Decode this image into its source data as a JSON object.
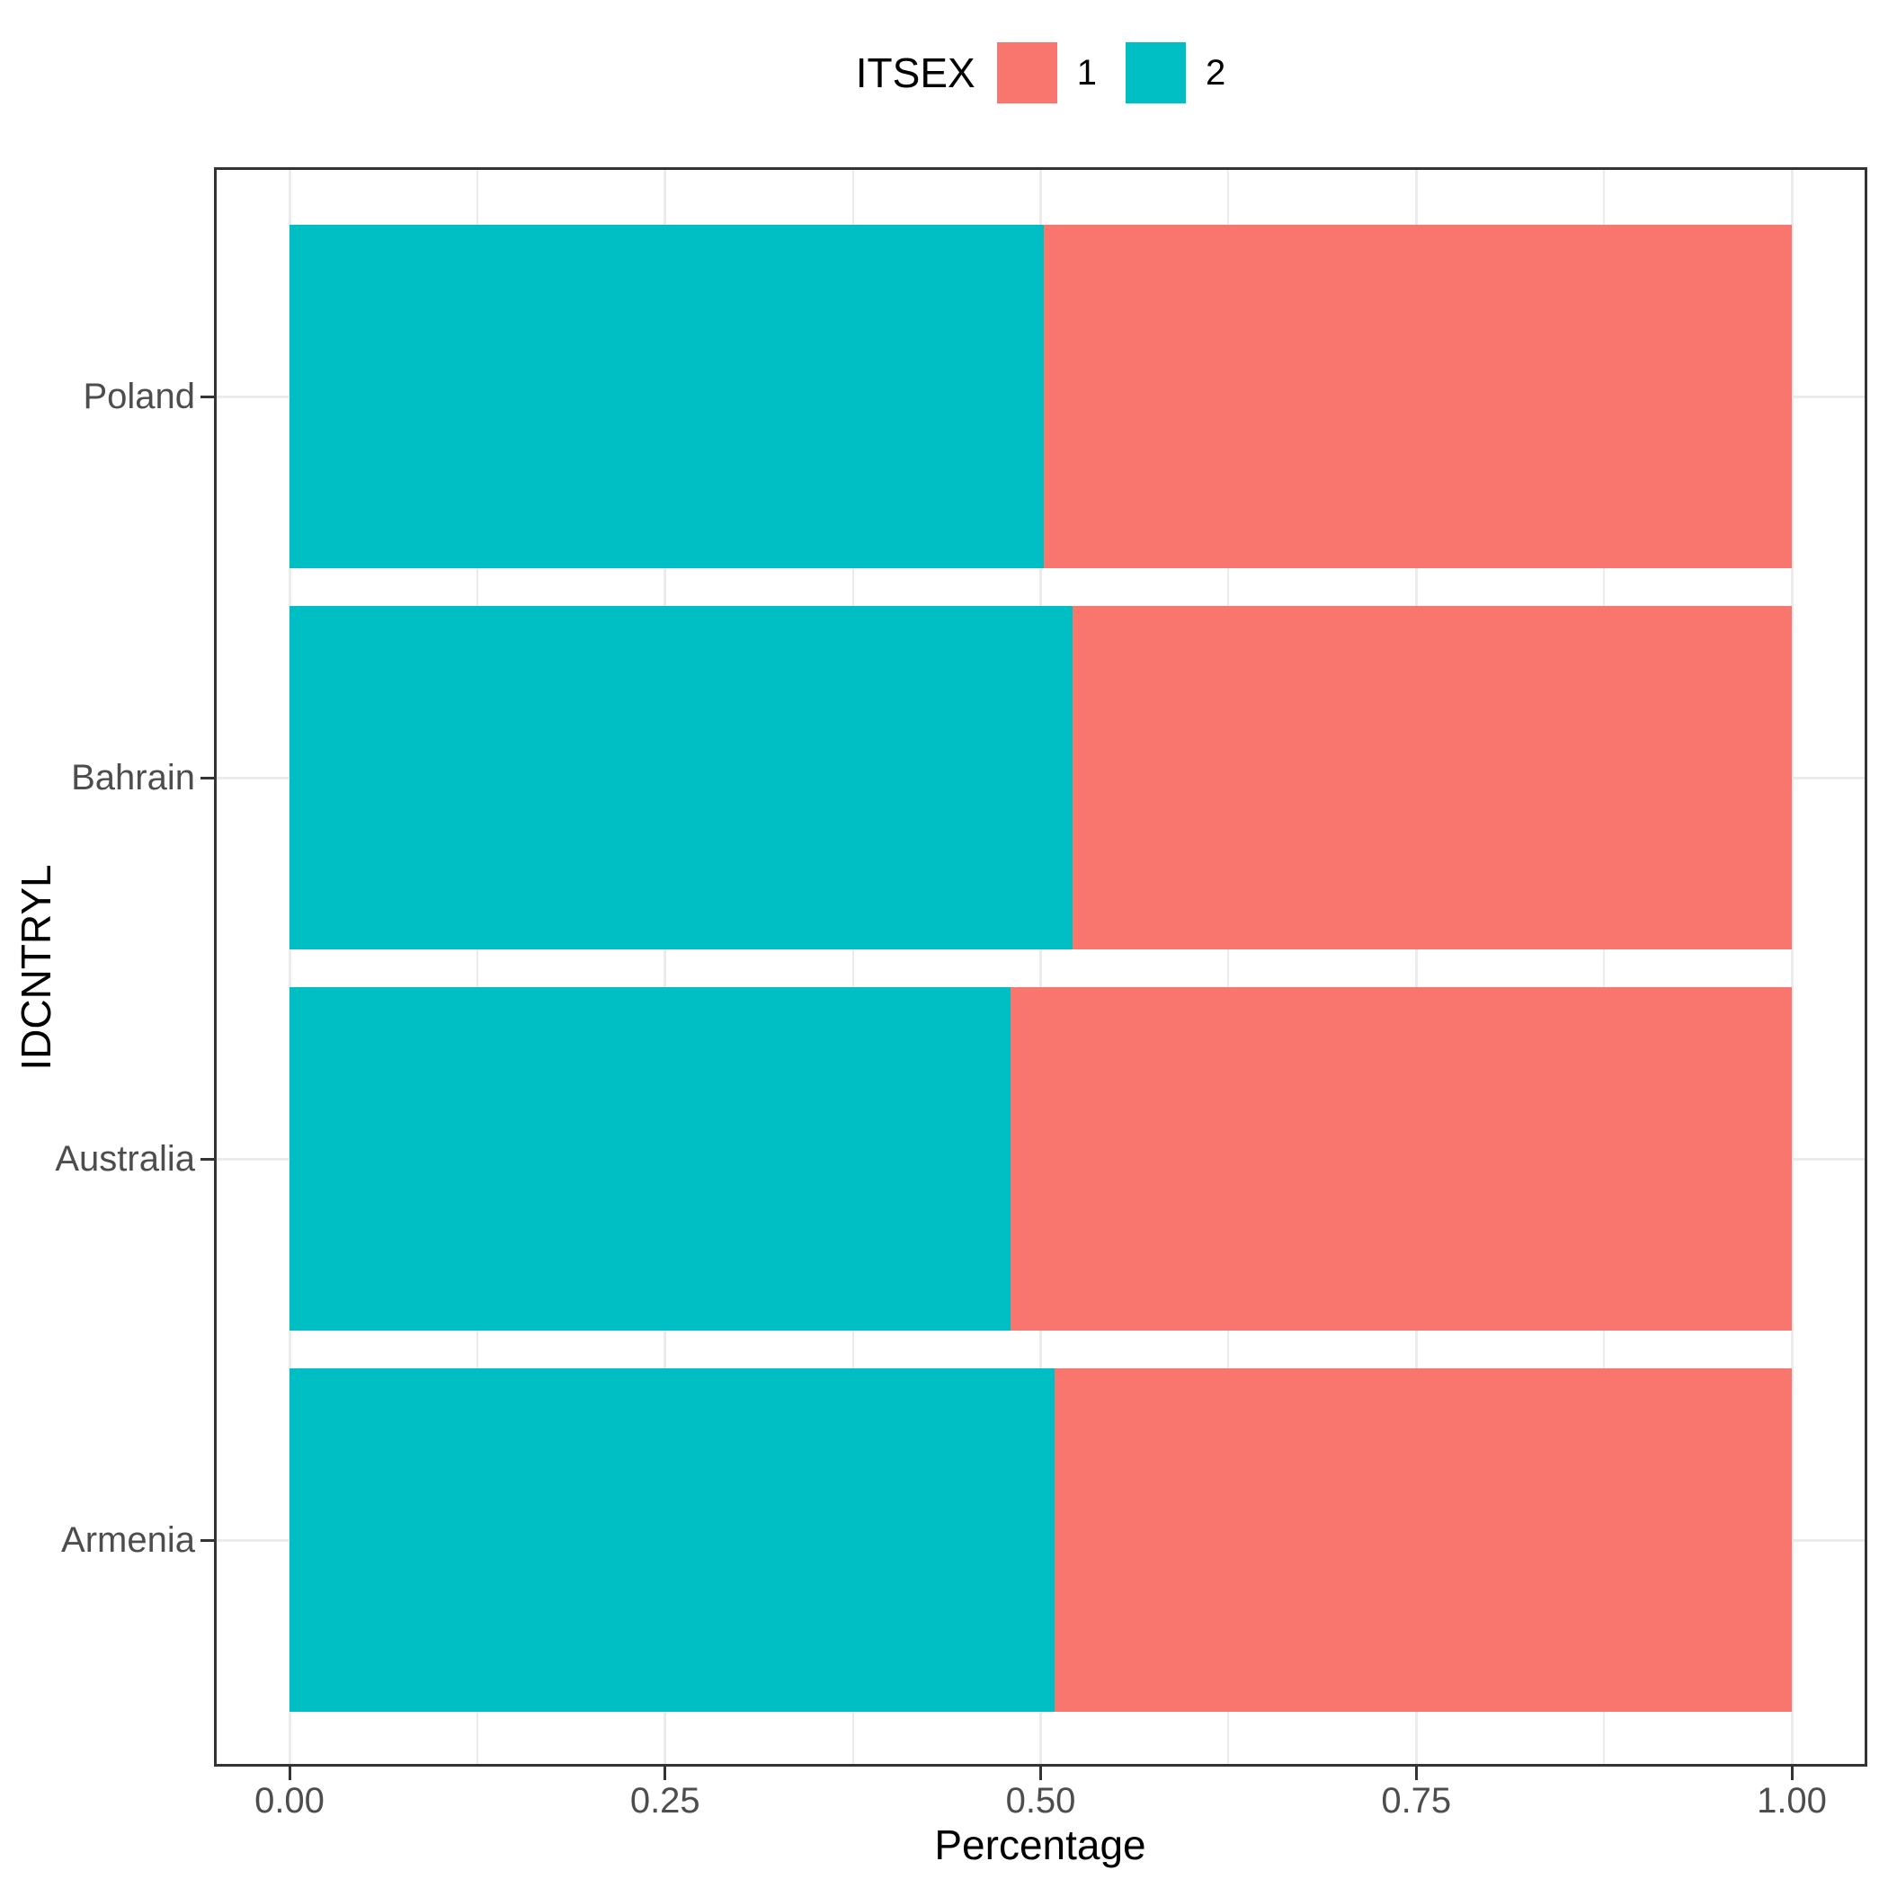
{
  "chart_data": {
    "type": "bar",
    "orientation": "horizontal",
    "stacked": true,
    "title": "",
    "xlabel": "Percentage",
    "ylabel": "IDCNTRYL",
    "categories": [
      "Poland",
      "Bahrain",
      "Australia",
      "Armenia"
    ],
    "series": [
      {
        "name": "2",
        "color": "#00BFC4",
        "values": [
          0.502,
          0.521,
          0.48,
          0.509
        ]
      },
      {
        "name": "1",
        "color": "#F8766D",
        "values": [
          0.498,
          0.479,
          0.52,
          0.491
        ]
      }
    ],
    "xlim": [
      0,
      1
    ],
    "x_ticks": [
      {
        "value": 0,
        "label": "0.00"
      },
      {
        "value": 0.25,
        "label": "0.25"
      },
      {
        "value": 0.5,
        "label": "0.50"
      },
      {
        "value": 0.75,
        "label": "0.75"
      },
      {
        "value": 1,
        "label": "1.00"
      }
    ],
    "x_minor_ticks": [
      0.125,
      0.375,
      0.625,
      0.875
    ],
    "grid": true,
    "legend": {
      "title": "ITSEX",
      "position": "top-center",
      "entries": [
        {
          "label": "1",
          "color": "#F8766D"
        },
        {
          "label": "2",
          "color": "#00BFC4"
        }
      ]
    },
    "style_colors": {
      "grid": "#EBEBEB",
      "panel_border": "#333333",
      "tick_mark": "#333333",
      "axis_text": "#4D4D4D",
      "axis_title": "#000000",
      "background": "#FFFFFF"
    }
  }
}
